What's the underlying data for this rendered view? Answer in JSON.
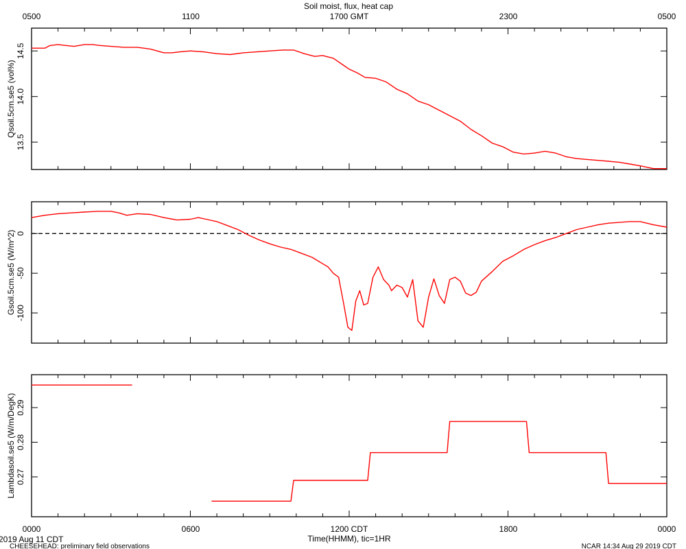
{
  "title": "Soil moist, flux, heat cap",
  "top_axis": {
    "ticks": [
      "0500",
      "1100",
      "1700 GMT",
      "2300",
      "0500"
    ]
  },
  "bottom_axis": {
    "ticks": [
      "0000",
      "0600",
      "1200 CDT",
      "1800",
      "0000"
    ],
    "label": "Time(HHMM), tic=1HR"
  },
  "footer": {
    "date": "2019 Aug 11 CDT",
    "project": "CHEESEHEAD: preliminary field observations",
    "stamp": "NCAR 14:34 Aug 29 2019 CDT"
  },
  "colors": {
    "series": "#ff0000",
    "axes": "#000000",
    "background": "#ffffff"
  },
  "chart_data": [
    {
      "type": "line",
      "ylabel": "Qsoil.5cm.se5 (vol%)",
      "xlim": [
        0,
        24
      ],
      "ylim": [
        13.2,
        14.75
      ],
      "yticks": [
        13.5,
        14.0,
        14.5
      ],
      "ytick_labels": [
        "13.5",
        "14.0",
        "14.5"
      ],
      "grid": false,
      "series": [
        {
          "x": [
            0,
            0.5,
            0.7,
            1.0,
            1.3,
            1.6,
            2.0,
            2.3,
            2.6,
            3.0,
            3.5,
            4.0,
            4.5,
            5.0,
            5.3,
            5.6,
            6.0,
            6.5,
            7.0,
            7.5,
            8.0,
            8.5,
            9.0,
            9.5,
            9.9,
            10.3,
            10.7,
            11.0,
            11.4,
            11.8,
            12.0,
            12.3,
            12.6,
            13.0,
            13.4,
            13.8,
            14.2,
            14.6,
            15.0,
            15.4,
            15.8,
            16.2,
            16.6,
            17.0,
            17.4,
            17.8,
            18.2,
            18.6,
            19.0,
            19.4,
            19.8,
            20.2,
            20.6,
            21.0,
            21.4,
            21.8,
            22.2,
            22.6,
            23.0,
            23.5,
            24.0
          ],
          "y": [
            14.53,
            14.53,
            14.56,
            14.57,
            14.56,
            14.55,
            14.57,
            14.57,
            14.56,
            14.55,
            14.54,
            14.54,
            14.52,
            14.48,
            14.48,
            14.49,
            14.5,
            14.49,
            14.47,
            14.46,
            14.48,
            14.49,
            14.5,
            14.51,
            14.51,
            14.47,
            14.44,
            14.45,
            14.42,
            14.34,
            14.3,
            14.26,
            14.21,
            14.2,
            14.16,
            14.08,
            14.03,
            13.95,
            13.91,
            13.85,
            13.79,
            13.73,
            13.64,
            13.57,
            13.49,
            13.45,
            13.39,
            13.37,
            13.38,
            13.4,
            13.38,
            13.34,
            13.32,
            13.31,
            13.3,
            13.29,
            13.28,
            13.26,
            13.24,
            13.21,
            13.21
          ]
        }
      ]
    },
    {
      "type": "line",
      "ylabel": "Gsoil.5cm.se5 (W/m^2)",
      "xlim": [
        0,
        24
      ],
      "ylim": [
        -138,
        40
      ],
      "yticks": [
        -100,
        -50,
        0
      ],
      "ytick_labels": [
        "-100",
        "-50",
        "0"
      ],
      "zero_line": "dashed",
      "grid": false,
      "series": [
        {
          "x": [
            0,
            0.5,
            1.0,
            1.5,
            2.0,
            2.5,
            3.0,
            3.3,
            3.6,
            4.0,
            4.5,
            5.0,
            5.5,
            6.0,
            6.3,
            6.6,
            7.0,
            7.4,
            7.8,
            8.2,
            8.6,
            9.0,
            9.4,
            9.8,
            10.2,
            10.6,
            11.0,
            11.2,
            11.4,
            11.6,
            11.8,
            11.95,
            12.1,
            12.25,
            12.4,
            12.55,
            12.7,
            12.9,
            13.1,
            13.3,
            13.5,
            13.6,
            13.8,
            14.0,
            14.2,
            14.4,
            14.6,
            14.8,
            15.0,
            15.2,
            15.4,
            15.6,
            15.8,
            16.0,
            16.2,
            16.4,
            16.6,
            16.8,
            17.0,
            17.4,
            17.8,
            18.2,
            18.6,
            19.0,
            19.4,
            19.8,
            20.2,
            20.6,
            21.0,
            21.4,
            21.8,
            22.2,
            22.6,
            23.0,
            23.5,
            24.0
          ],
          "y": [
            20,
            23,
            25,
            26,
            27,
            28,
            28,
            26,
            23,
            25,
            24,
            20,
            17,
            18,
            20,
            18,
            15,
            10,
            5,
            -2,
            -8,
            -13,
            -17,
            -20,
            -25,
            -30,
            -38,
            -42,
            -50,
            -55,
            -90,
            -118,
            -122,
            -85,
            -72,
            -90,
            -88,
            -55,
            -42,
            -58,
            -65,
            -72,
            -65,
            -68,
            -80,
            -58,
            -110,
            -118,
            -80,
            -57,
            -78,
            -88,
            -58,
            -55,
            -60,
            -75,
            -78,
            -74,
            -60,
            -48,
            -35,
            -28,
            -20,
            -14,
            -9,
            -5,
            0,
            5,
            8,
            11,
            13,
            14,
            15,
            15,
            11,
            8
          ]
        }
      ]
    },
    {
      "type": "line",
      "ylabel": "Lambdasoil.se5 (W/m/DegK)",
      "xlim": [
        0,
        24
      ],
      "ylim": [
        0.2585,
        0.2995
      ],
      "yticks": [
        0.27,
        0.28,
        0.29
      ],
      "ytick_labels": [
        "0.27",
        "0.28",
        "0.29"
      ],
      "grid": false,
      "series": [
        {
          "segments": [
            {
              "x": [
                0,
                3.8
              ],
              "y": [
                0.2965,
                0.2965
              ]
            },
            {
              "x": [
                6.8,
                9.8,
                9.9,
                12.7,
                12.8,
                15.7,
                15.8,
                18.7,
                18.8,
                21.7,
                21.8,
                24.0
              ],
              "y": [
                0.263,
                0.263,
                0.269,
                0.269,
                0.277,
                0.277,
                0.286,
                0.286,
                0.277,
                0.277,
                0.2681,
                0.2681
              ]
            }
          ]
        }
      ]
    }
  ]
}
